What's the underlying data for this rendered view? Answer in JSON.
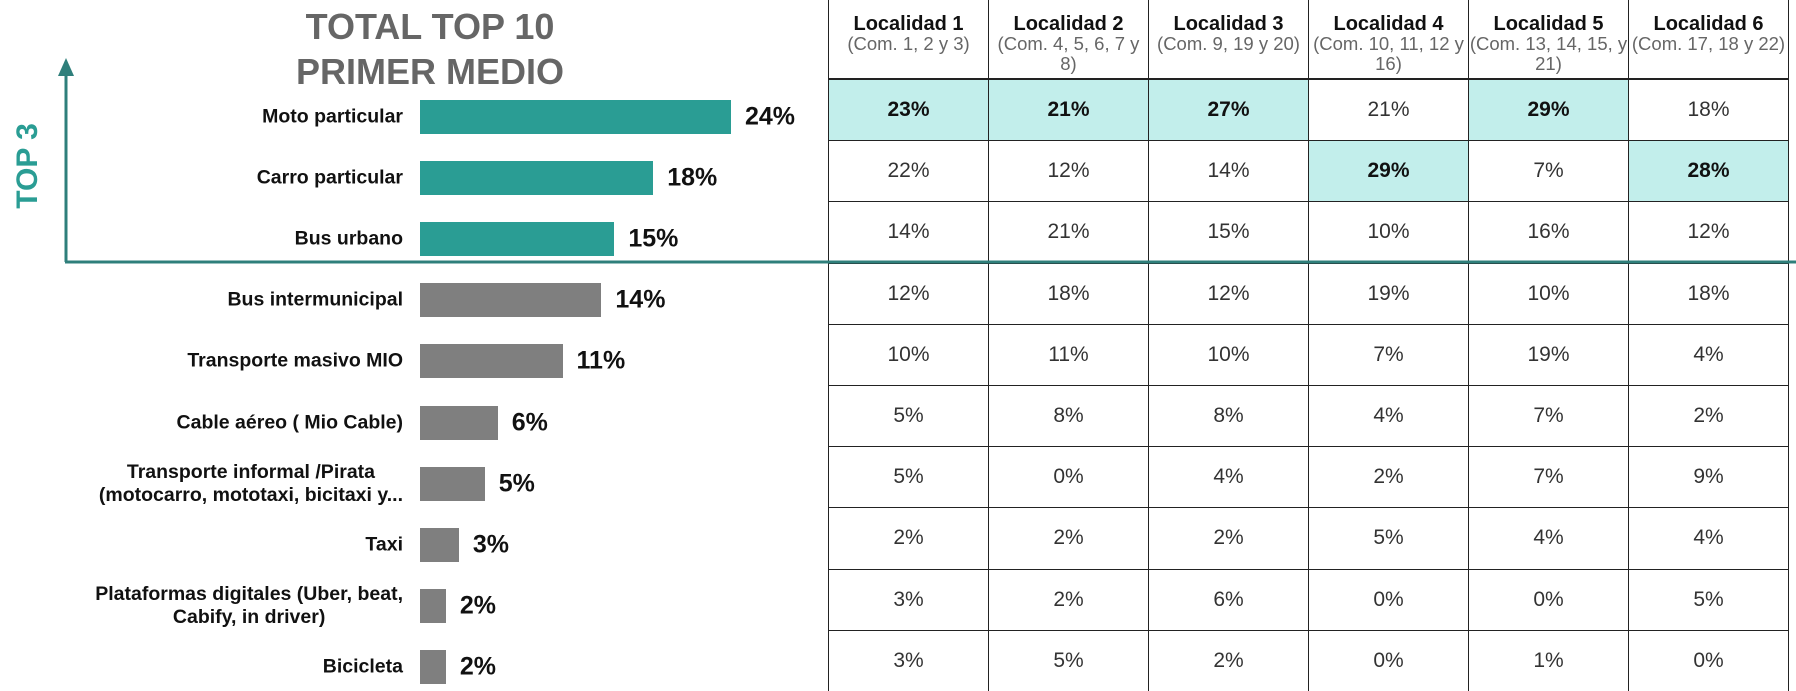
{
  "chart_data": {
    "type": "bar",
    "orientation": "horizontal",
    "title": "TOTAL TOP 10\nPRIMER MEDIO",
    "annotation": "TOP 3",
    "categories": [
      "Moto particular",
      "Carro particular",
      "Bus urbano",
      "Bus intermunicipal",
      "Transporte masivo MIO",
      "Cable aéreo ( Mio Cable)",
      "Transporte informal /Pirata\n(motocarro, mototaxi, bicitaxi y...",
      "Taxi",
      "Plataformas digitales (Uber, beat,\nCabify, in driver)",
      "Bicicleta"
    ],
    "values": [
      24,
      18,
      15,
      14,
      11,
      6,
      5,
      3,
      2,
      2
    ],
    "value_labels": [
      "24%",
      "18%",
      "15%",
      "14%",
      "11%",
      "6%",
      "5%",
      "3%",
      "2%",
      "2%"
    ],
    "colors": [
      "#2a9d94",
      "#2a9d94",
      "#2a9d94",
      "#7f7f7f",
      "#7f7f7f",
      "#7f7f7f",
      "#7f7f7f",
      "#7f7f7f",
      "#7f7f7f",
      "#7f7f7f"
    ]
  },
  "table": {
    "columns": [
      {
        "name": "Localidad 1",
        "sub": "(Com. 1, 2 y 3)"
      },
      {
        "name": "Localidad 2",
        "sub": "(Com. 4, 5, 6, 7 y 8)"
      },
      {
        "name": "Localidad 3",
        "sub": "(Com. 9, 19 y 20)"
      },
      {
        "name": "Localidad 4",
        "sub": "(Com. 10, 11, 12 y 16)"
      },
      {
        "name": "Localidad 5",
        "sub": "(Com. 13, 14, 15, y 21)"
      },
      {
        "name": "Localidad 6",
        "sub": "(Com. 17, 18 y 22)"
      }
    ],
    "rows": [
      [
        "23%",
        "21%",
        "27%",
        "21%",
        "29%",
        "18%"
      ],
      [
        "22%",
        "12%",
        "14%",
        "29%",
        "7%",
        "28%"
      ],
      [
        "14%",
        "21%",
        "15%",
        "10%",
        "16%",
        "12%"
      ],
      [
        "12%",
        "18%",
        "12%",
        "19%",
        "10%",
        "18%"
      ],
      [
        "10%",
        "11%",
        "10%",
        "7%",
        "19%",
        "4%"
      ],
      [
        "5%",
        "8%",
        "8%",
        "4%",
        "7%",
        "2%"
      ],
      [
        "5%",
        "0%",
        "4%",
        "2%",
        "7%",
        "9%"
      ],
      [
        "2%",
        "2%",
        "2%",
        "5%",
        "4%",
        "4%"
      ],
      [
        "3%",
        "2%",
        "6%",
        "0%",
        "0%",
        "5%"
      ],
      [
        "3%",
        "5%",
        "2%",
        "0%",
        "1%",
        "0%"
      ]
    ],
    "highlight": [
      [
        true,
        true,
        true,
        false,
        true,
        false
      ],
      [
        false,
        false,
        false,
        true,
        false,
        true
      ],
      [
        false,
        false,
        false,
        false,
        false,
        false
      ],
      [
        false,
        false,
        false,
        false,
        false,
        false
      ],
      [
        false,
        false,
        false,
        false,
        false,
        false
      ],
      [
        false,
        false,
        false,
        false,
        false,
        false
      ],
      [
        false,
        false,
        false,
        false,
        false,
        false
      ],
      [
        false,
        false,
        false,
        false,
        false,
        false
      ],
      [
        false,
        false,
        false,
        false,
        false,
        false
      ],
      [
        false,
        false,
        false,
        false,
        false,
        false
      ]
    ],
    "highlight_color": "#c2eeeb"
  }
}
